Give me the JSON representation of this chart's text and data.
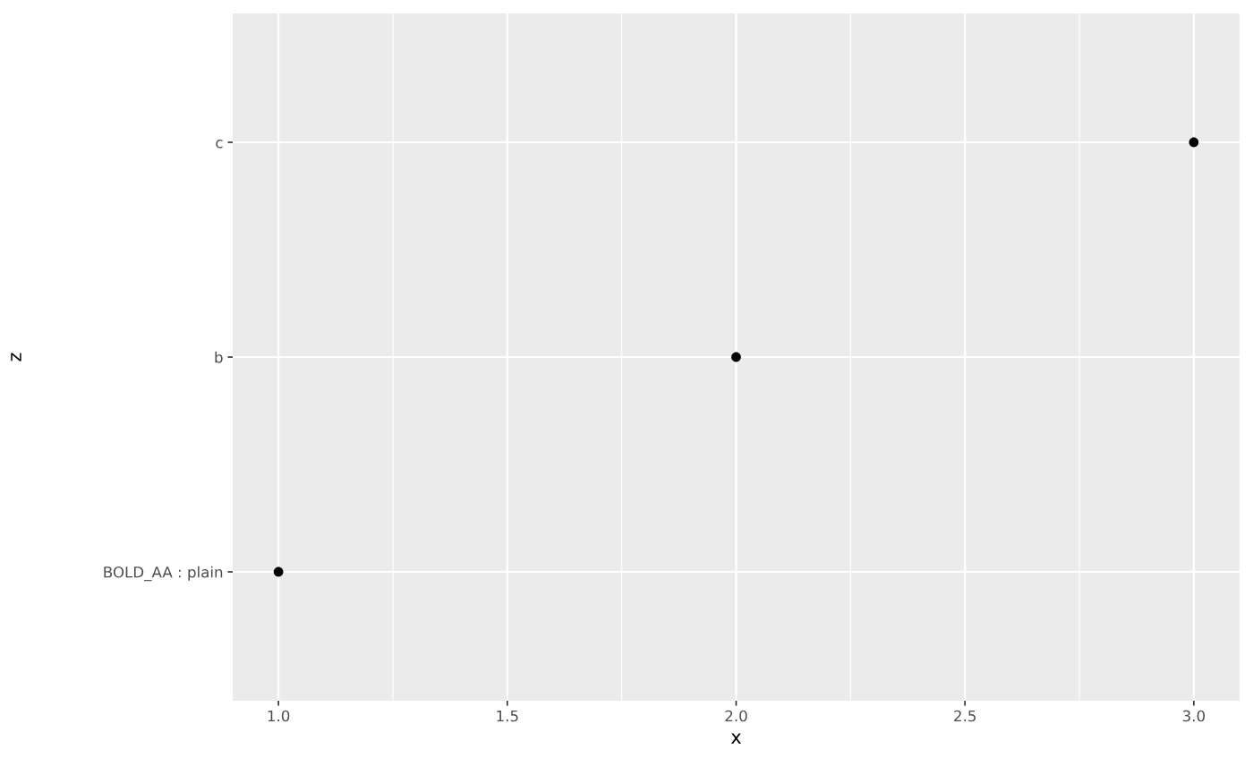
{
  "chart_data": {
    "type": "scatter",
    "orientation": "horizontal",
    "xlabel": "x",
    "ylabel": "z",
    "categories": [
      "c",
      "b",
      "BOLD_AA : plain"
    ],
    "series": [
      {
        "color": "#000000",
        "values": [
          3,
          2,
          1
        ]
      }
    ],
    "xlim": [
      0.9,
      3.1
    ],
    "xticks": [
      {
        "value": 1,
        "label": "1.0"
      },
      {
        "value": 1.5,
        "label": "1.5"
      },
      {
        "value": 2,
        "label": "2.0"
      },
      {
        "value": 2.5,
        "label": "2.5"
      },
      {
        "value": 3,
        "label": "3.0"
      }
    ],
    "grid": true,
    "marker": "circle"
  }
}
